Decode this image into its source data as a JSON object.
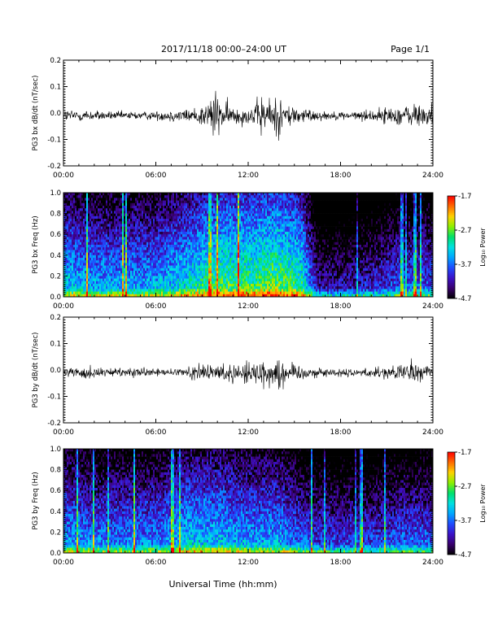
{
  "header": {
    "date_range": "2017/11/18   00:00–24:00 UT",
    "page": "Page 1/1"
  },
  "footer": {
    "xlabel": "Universal Time (hh:mm)"
  },
  "colorbar": {
    "label": "Log₁₀ Power",
    "ticks": [
      "-1.7",
      "-2.7",
      "-3.7",
      "-4.7"
    ],
    "colormap": [
      "#000000",
      "#3a006e",
      "#3b12c8",
      "#1f4cff",
      "#00a6ff",
      "#00e1e1",
      "#00e06a",
      "#8cf000",
      "#ffd200",
      "#ff6a00",
      "#ff0000"
    ]
  },
  "chart_data": [
    {
      "type": "line",
      "ylabel": "PG3 bx dB/dt (nT/sec)",
      "xlim": [
        "00:00",
        "24:00"
      ],
      "xticks": [
        "00:00",
        "06:00",
        "12:00",
        "18:00",
        "24:00"
      ],
      "ylim": [
        -0.2,
        0.2
      ],
      "yticks": [
        "0.2",
        "0.1",
        "0.0",
        "-0.1",
        "-0.2"
      ],
      "baseline": -0.01,
      "envelope_hours": [
        0,
        1,
        2,
        3,
        4,
        5,
        6,
        7,
        8,
        9,
        9.5,
        9.8,
        10,
        10.3,
        11,
        12,
        12.5,
        13,
        13.3,
        13.7,
        14,
        14.5,
        15,
        16,
        17,
        18,
        19,
        20,
        21,
        22,
        23,
        24
      ],
      "envelope_amplitude": [
        0.03,
        0.03,
        0.025,
        0.02,
        0.02,
        0.02,
        0.02,
        0.03,
        0.03,
        0.05,
        0.1,
        0.13,
        0.1,
        0.07,
        0.05,
        0.04,
        0.06,
        0.12,
        0.09,
        0.08,
        0.11,
        0.06,
        0.05,
        0.03,
        0.02,
        0.02,
        0.02,
        0.03,
        0.04,
        0.05,
        0.06,
        0.06
      ],
      "line_color": "#000000"
    },
    {
      "type": "heatmap",
      "ylabel": "PG3 bx Freq (Hz)",
      "xlim": [
        "00:00",
        "24:00"
      ],
      "xticks": [
        "00:00",
        "06:00",
        "12:00",
        "18:00",
        "24:00"
      ],
      "ylim": [
        0.0,
        1.0
      ],
      "yticks": [
        "1.0",
        "0.8",
        "0.6",
        "0.4",
        "0.2",
        "0.0"
      ],
      "zlim": [
        -4.7,
        -1.7
      ],
      "activity_hours": [
        0,
        2,
        4,
        6,
        8,
        10,
        12,
        14,
        15.5,
        16.5,
        18,
        20,
        22,
        24
      ],
      "activity_level": [
        0.5,
        0.45,
        0.45,
        0.45,
        0.55,
        0.65,
        0.65,
        0.7,
        0.6,
        0.2,
        0.2,
        0.25,
        0.35,
        0.35
      ]
    },
    {
      "type": "line",
      "ylabel": "PG3 by dB/dt (nT/sec)",
      "xlim": [
        "00:00",
        "24:00"
      ],
      "xticks": [
        "00:00",
        "06:00",
        "12:00",
        "18:00",
        "24:00"
      ],
      "ylim": [
        -0.2,
        0.2
      ],
      "yticks": [
        "0.2",
        "0.1",
        "0.0",
        "-0.1",
        "-0.2"
      ],
      "baseline": -0.01,
      "envelope_hours": [
        0,
        1,
        2,
        3,
        4,
        5,
        6,
        7,
        8,
        9,
        10,
        11,
        12,
        12.5,
        13,
        13.5,
        14,
        14.5,
        15,
        16,
        17,
        18,
        19,
        20,
        21,
        22,
        23,
        24
      ],
      "envelope_amplitude": [
        0.03,
        0.03,
        0.03,
        0.02,
        0.02,
        0.02,
        0.02,
        0.02,
        0.03,
        0.04,
        0.04,
        0.05,
        0.05,
        0.06,
        0.08,
        0.07,
        0.1,
        0.06,
        0.04,
        0.03,
        0.02,
        0.02,
        0.02,
        0.02,
        0.03,
        0.04,
        0.05,
        0.06
      ],
      "line_color": "#000000"
    },
    {
      "type": "heatmap",
      "ylabel": "PG3 by Freq (Hz)",
      "xlim": [
        "00:00",
        "24:00"
      ],
      "xticks": [
        "00:00",
        "06:00",
        "12:00",
        "18:00",
        "24:00"
      ],
      "ylim": [
        0.0,
        1.0
      ],
      "yticks": [
        "1.0",
        "0.8",
        "0.6",
        "0.4",
        "0.2",
        "0.0"
      ],
      "zlim": [
        -4.7,
        -1.7
      ],
      "activity_hours": [
        0,
        2,
        4,
        6,
        8,
        10,
        12,
        14,
        15.5,
        16.5,
        18,
        20,
        22,
        24
      ],
      "activity_level": [
        0.45,
        0.4,
        0.4,
        0.4,
        0.5,
        0.5,
        0.45,
        0.45,
        0.35,
        0.3,
        0.3,
        0.3,
        0.35,
        0.35
      ]
    }
  ]
}
